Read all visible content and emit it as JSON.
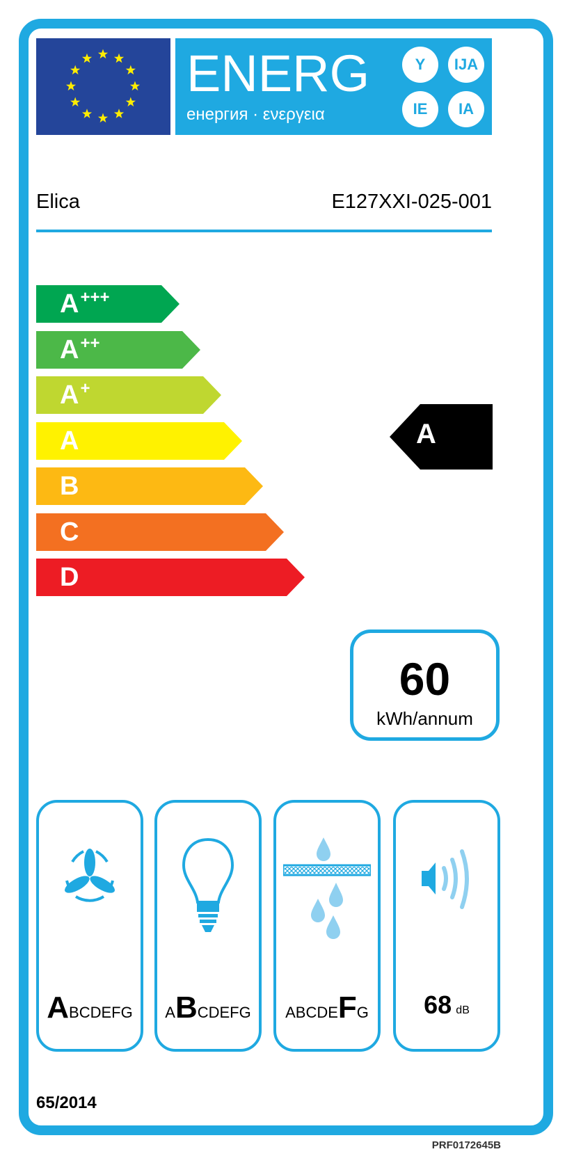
{
  "header": {
    "energy_word": "ENERG",
    "energy_subtitle": "енергия · ενεργεια",
    "language_suffixes": [
      "Y",
      "IJA",
      "IE",
      "IA"
    ],
    "flag": "eu-flag-icon",
    "colors": {
      "frame": "#1fa9e1",
      "flag": "#24459a",
      "stars": "#ffed00"
    }
  },
  "product": {
    "supplier": "Elica",
    "model": "E127XXI-025-001"
  },
  "energy_scale": [
    {
      "class": "A",
      "suffix": "+++",
      "color": "#00a651"
    },
    {
      "class": "A",
      "suffix": "++",
      "color": "#4cb848"
    },
    {
      "class": "A",
      "suffix": "+",
      "color": "#bfd730"
    },
    {
      "class": "A",
      "suffix": "",
      "color": "#fff200"
    },
    {
      "class": "B",
      "suffix": "",
      "color": "#fdb913"
    },
    {
      "class": "C",
      "suffix": "",
      "color": "#f37021"
    },
    {
      "class": "D",
      "suffix": "",
      "color": "#ed1c24"
    }
  ],
  "rating": {
    "class": "A",
    "row_index": 3
  },
  "consumption": {
    "value": "60",
    "unit": "kWh/annum"
  },
  "pictograms": [
    {
      "icon": "fan-icon",
      "before": "",
      "highlight": "A",
      "after": "BCDEFG"
    },
    {
      "icon": "light-bulb-icon",
      "before": "A",
      "highlight": "B",
      "after": "CDEFG"
    },
    {
      "icon": "grease-filter-icon",
      "before": "ABCDE",
      "highlight": "F",
      "after": "G"
    },
    {
      "icon": "speaker-noise-icon",
      "value": "68",
      "unit": "dB"
    }
  ],
  "regulation": "65/2014",
  "code": "PRF0172645B"
}
